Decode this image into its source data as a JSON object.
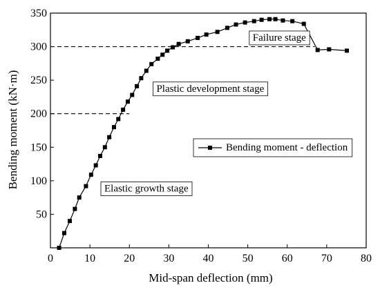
{
  "chart_data": {
    "type": "line",
    "xlabel": "Mid-span deflection (mm)",
    "ylabel": "Bending moment (kN·m)",
    "xlim": [
      0,
      80
    ],
    "ylim": [
      0,
      350
    ],
    "xticks": [
      0,
      10,
      20,
      30,
      40,
      50,
      60,
      70,
      80
    ],
    "yticks": [
      50,
      100,
      150,
      200,
      250,
      300,
      350
    ],
    "grid": false,
    "legend_position": "right-middle",
    "series": [
      {
        "name": "Bending moment - deflection",
        "color": "#000000",
        "marker": "square",
        "x": [
          2.2,
          3.5,
          4.9,
          6.2,
          7.3,
          9.0,
          10.3,
          11.5,
          12.6,
          13.8,
          14.9,
          16.1,
          17.2,
          18.4,
          19.6,
          20.7,
          21.9,
          23.0,
          24.3,
          25.6,
          27.2,
          28.4,
          29.6,
          31.0,
          32.5,
          34.8,
          37.3,
          39.5,
          42.3,
          44.8,
          47.0,
          49.3,
          51.6,
          53.5,
          55.5,
          57.0,
          58.9,
          61.3,
          64.2,
          67.7,
          70.6,
          75.1
        ],
        "y": [
          0,
          22,
          40,
          58,
          75,
          92,
          109,
          123,
          137,
          150,
          165,
          180,
          192,
          206,
          218,
          228,
          241,
          253,
          264,
          274,
          282,
          288,
          294,
          299,
          304,
          308,
          313,
          318,
          322,
          328,
          333,
          336,
          338,
          340,
          341,
          341,
          339,
          338,
          334,
          295,
          296,
          294
        ]
      }
    ],
    "reference_lines": [
      {
        "y": 200,
        "x_from": 0,
        "x_to": 20,
        "style": "dashed"
      },
      {
        "y": 300,
        "x_from": 0,
        "x_to": 67,
        "style": "dashed"
      }
    ],
    "annotations": [
      {
        "text": "Elastic growth stage",
        "x": 24.3,
        "y": 88
      },
      {
        "text": "Plastic development stage",
        "x": 40.5,
        "y": 237
      },
      {
        "text": "Failure stage",
        "x": 58.0,
        "y": 313
      }
    ]
  }
}
